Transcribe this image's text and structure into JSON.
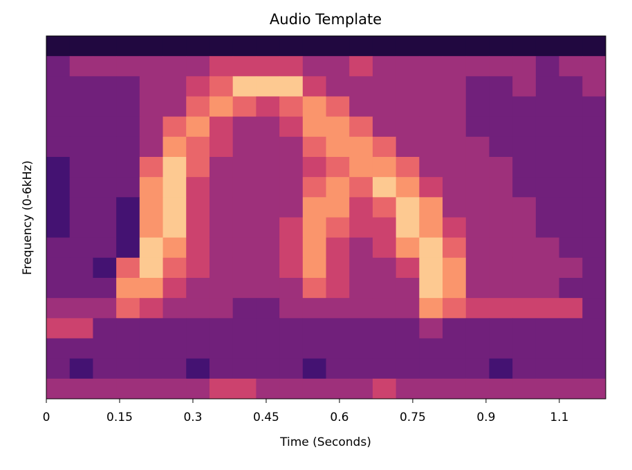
{
  "chart_data": {
    "type": "spectrogram",
    "title": "Audio Template",
    "x_label": "Time (Seconds)",
    "y_label": "Frequency (0-6kHz)",
    "xlim": [
      0,
      1.145
    ],
    "xticks": [
      0,
      0.15,
      0.3,
      0.45,
      0.6,
      0.75,
      0.9,
      {
        "value": 1.05,
        "label": "1.1"
      }
    ],
    "zlim": [
      0,
      9
    ],
    "colormap": [
      "#000004",
      "#3b0f70",
      "#8c2981",
      "#de4968",
      "#fe9f6d",
      "#fcfdbf"
    ],
    "z": [
      [
        1,
        1,
        1,
        1,
        1,
        1,
        1,
        1,
        1,
        1,
        1,
        1,
        1,
        1,
        1,
        1,
        1,
        1,
        1,
        1,
        1,
        1,
        1,
        1
      ],
      [
        3,
        4,
        4,
        4,
        4,
        4,
        4,
        5,
        5,
        5,
        5,
        4,
        4,
        5,
        4,
        4,
        4,
        4,
        4,
        4,
        4,
        3,
        4,
        4
      ],
      [
        3,
        3,
        3,
        3,
        4,
        4,
        5,
        6,
        8,
        8,
        8,
        5,
        4,
        4,
        4,
        4,
        4,
        4,
        3,
        3,
        4,
        3,
        3,
        4
      ],
      [
        3,
        3,
        3,
        3,
        4,
        4,
        6,
        7,
        6,
        5,
        6,
        7,
        6,
        4,
        4,
        4,
        4,
        4,
        3,
        3,
        3,
        3,
        3,
        3
      ],
      [
        3,
        3,
        3,
        3,
        4,
        6,
        7,
        5,
        4,
        4,
        5,
        7,
        7,
        6,
        4,
        4,
        4,
        4,
        3,
        3,
        3,
        3,
        3,
        3
      ],
      [
        3,
        3,
        3,
        3,
        4,
        7,
        6,
        5,
        4,
        4,
        4,
        6,
        7,
        7,
        6,
        4,
        4,
        4,
        4,
        3,
        3,
        3,
        3,
        3
      ],
      [
        2,
        3,
        3,
        3,
        6,
        8,
        6,
        4,
        4,
        4,
        4,
        5,
        6,
        7,
        7,
        6,
        4,
        4,
        4,
        4,
        3,
        3,
        3,
        3
      ],
      [
        2,
        3,
        3,
        3,
        7,
        8,
        5,
        4,
        4,
        4,
        4,
        6,
        7,
        6,
        8,
        7,
        5,
        4,
        4,
        4,
        3,
        3,
        3,
        3
      ],
      [
        2,
        3,
        3,
        2,
        7,
        8,
        5,
        4,
        4,
        4,
        4,
        7,
        7,
        5,
        6,
        8,
        7,
        4,
        4,
        4,
        4,
        3,
        3,
        3
      ],
      [
        2,
        3,
        3,
        2,
        7,
        8,
        5,
        4,
        4,
        4,
        5,
        7,
        6,
        5,
        5,
        8,
        7,
        5,
        4,
        4,
        4,
        3,
        3,
        3
      ],
      [
        3,
        3,
        3,
        2,
        8,
        7,
        5,
        4,
        4,
        4,
        5,
        7,
        5,
        4,
        5,
        7,
        8,
        6,
        4,
        4,
        4,
        4,
        3,
        3
      ],
      [
        3,
        3,
        2,
        6,
        8,
        6,
        5,
        4,
        4,
        4,
        5,
        7,
        5,
        4,
        4,
        5,
        8,
        7,
        4,
        4,
        4,
        4,
        4,
        3
      ],
      [
        3,
        3,
        3,
        7,
        7,
        5,
        4,
        4,
        4,
        4,
        4,
        6,
        5,
        4,
        4,
        4,
        8,
        7,
        4,
        4,
        4,
        4,
        3,
        3
      ],
      [
        4,
        4,
        4,
        6,
        5,
        4,
        4,
        4,
        3,
        3,
        4,
        4,
        4,
        4,
        4,
        4,
        7,
        6,
        5,
        5,
        5,
        5,
        5,
        3
      ],
      [
        5,
        5,
        3,
        3,
        3,
        3,
        3,
        3,
        3,
        3,
        3,
        3,
        3,
        3,
        3,
        3,
        4,
        3,
        3,
        3,
        3,
        3,
        3,
        3
      ],
      [
        3,
        3,
        3,
        3,
        3,
        3,
        3,
        3,
        3,
        3,
        3,
        3,
        3,
        3,
        3,
        3,
        3,
        3,
        3,
        3,
        3,
        3,
        3,
        3
      ],
      [
        3,
        2,
        3,
        3,
        3,
        3,
        2,
        3,
        3,
        3,
        3,
        2,
        3,
        3,
        3,
        3,
        3,
        3,
        3,
        2,
        3,
        3,
        3,
        3
      ],
      [
        4,
        4,
        4,
        4,
        4,
        4,
        4,
        5,
        5,
        4,
        4,
        4,
        4,
        4,
        5,
        4,
        4,
        4,
        4,
        4,
        4,
        4,
        4,
        4
      ]
    ]
  }
}
